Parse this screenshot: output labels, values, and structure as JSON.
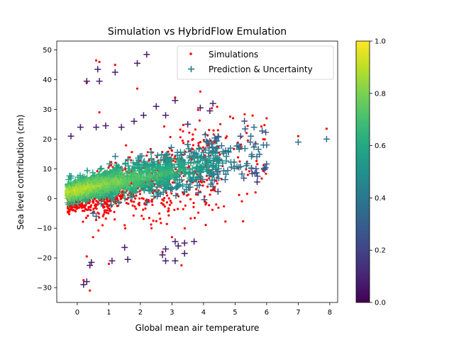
{
  "chart_data": {
    "type": "scatter",
    "title": "Simulation vs HybridFlow Emulation",
    "xlabel": "Global mean air temperature",
    "ylabel": "Sea level contribution (cm)",
    "xlim": [
      -0.65,
      8.25
    ],
    "ylim": [
      -35,
      53
    ],
    "xticks": [
      0,
      1,
      2,
      3,
      4,
      5,
      6,
      7,
      8
    ],
    "yticks": [
      -30,
      -20,
      -10,
      0,
      10,
      20,
      30,
      40,
      50
    ],
    "grid": false,
    "legend_position": "top-right",
    "legend": [
      "Simulations",
      "Prediction & Uncertainty"
    ],
    "colorbar": {
      "ticks": [
        "0.0",
        "0.2",
        "0.4",
        "0.6",
        "0.8",
        "1.0"
      ],
      "range": [
        0,
        1
      ],
      "colormap": "viridis"
    },
    "colors": {
      "simulations": "#ff0000"
    },
    "series": [
      {
        "name": "Simulations",
        "marker": "dot",
        "trend": {
          "x": [
            -0.3,
            0.5,
            1.5,
            2.5,
            3.5,
            4.5,
            5.5,
            6.0
          ],
          "y": [
            -1,
            1.5,
            3.5,
            6,
            8.5,
            11,
            14,
            16
          ]
        },
        "points": [
          [
            0.6,
            46.5
          ],
          [
            0.7,
            46
          ],
          [
            1.2,
            45
          ],
          [
            1.9,
            37
          ],
          [
            3.1,
            34
          ],
          [
            3.9,
            36
          ],
          [
            6.0,
            27
          ],
          [
            7.0,
            21
          ],
          [
            7.9,
            23.5
          ],
          [
            0.3,
            39
          ],
          [
            0.7,
            29
          ],
          [
            0.2,
            -27.5
          ],
          [
            0.4,
            -31
          ],
          [
            0.3,
            -19.5
          ],
          [
            3.3,
            -22.5
          ],
          [
            1.5,
            -9
          ],
          [
            1.0,
            -22
          ],
          [
            2.7,
            -18
          ],
          [
            3.0,
            -13
          ],
          [
            0.5,
            -13
          ],
          [
            0.8,
            -9
          ]
        ]
      },
      {
        "name": "Prediction & Uncertainty",
        "marker": "plus",
        "trend": {
          "x": [
            -0.3,
            0.5,
            1.5,
            2.5,
            3.5,
            4.5,
            5.5,
            6.0
          ],
          "y": [
            2,
            4,
            6,
            8,
            10,
            12.5,
            15,
            17
          ]
        },
        "points": [
          [
            0.3,
            39.5
          ],
          [
            0.65,
            43.5
          ],
          [
            0.7,
            39.5
          ],
          [
            1.2,
            42.5
          ],
          [
            1.9,
            45.5
          ],
          [
            2.2,
            48.5
          ],
          [
            3.1,
            33
          ],
          [
            2.5,
            31
          ],
          [
            2.8,
            28
          ],
          [
            3.9,
            30.5
          ],
          [
            4.3,
            32
          ],
          [
            4.2,
            29.5
          ],
          [
            2.1,
            28
          ],
          [
            -0.2,
            21
          ],
          [
            0.1,
            24
          ],
          [
            0.6,
            24
          ],
          [
            0.9,
            24.5
          ],
          [
            1.4,
            24
          ],
          [
            1.8,
            26
          ],
          [
            3.5,
            25
          ],
          [
            5.6,
            24
          ],
          [
            5.5,
            21
          ],
          [
            5.9,
            18
          ],
          [
            6.0,
            18
          ],
          [
            7.0,
            19
          ],
          [
            7.9,
            20
          ],
          [
            0.2,
            -29
          ],
          [
            0.3,
            -28
          ],
          [
            0.4,
            -22.5
          ],
          [
            0.45,
            -21.5
          ],
          [
            1.1,
            -21
          ],
          [
            1.5,
            -16.5
          ],
          [
            1.6,
            -20.5
          ],
          [
            2.7,
            -19
          ],
          [
            2.8,
            -21
          ],
          [
            2.8,
            -17
          ],
          [
            3.1,
            -14.5
          ],
          [
            3.1,
            -21
          ],
          [
            3.2,
            -16
          ],
          [
            3.4,
            -15
          ],
          [
            3.4,
            -18.5
          ],
          [
            3.7,
            -14.5
          ],
          [
            0.5,
            -5
          ],
          [
            0.6,
            -6
          ]
        ]
      }
    ]
  }
}
